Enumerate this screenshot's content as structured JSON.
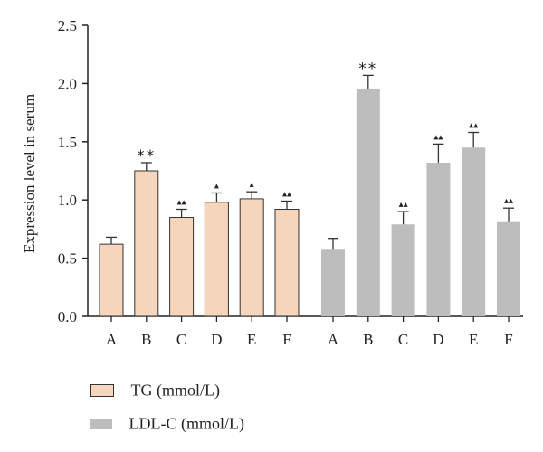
{
  "chart_data": {
    "type": "bar",
    "ylabel": "Expression level in serum",
    "ylim": [
      0,
      2.5
    ],
    "yticks": [
      "0.0",
      "0.5",
      "1.0",
      "1.5",
      "2.0",
      "2.5"
    ],
    "ytick_values": [
      0,
      0.5,
      1.0,
      1.5,
      2.0,
      2.5
    ],
    "legend_position": "bottom-left",
    "series": [
      {
        "name": "TG (mmol/L)",
        "color": "#f5d6bd",
        "categories": [
          "A",
          "B",
          "C",
          "D",
          "E",
          "F"
        ],
        "values": [
          0.62,
          1.25,
          0.85,
          0.98,
          1.01,
          0.92
        ],
        "errors": [
          0.06,
          0.07,
          0.07,
          0.08,
          0.06,
          0.07
        ],
        "annotations": [
          "",
          "**",
          "▴▴",
          "▴",
          "▴",
          "▴▴"
        ]
      },
      {
        "name": "LDL-C (mmol/L)",
        "color": "#bdbdbd",
        "categories": [
          "A",
          "B",
          "C",
          "D",
          "E",
          "F"
        ],
        "values": [
          0.58,
          1.95,
          0.79,
          1.32,
          1.45,
          0.81
        ],
        "errors": [
          0.09,
          0.12,
          0.11,
          0.16,
          0.13,
          0.12
        ],
        "annotations": [
          "",
          "**",
          "▴▴",
          "▴▴",
          "▴▴",
          "▴▴"
        ]
      }
    ]
  },
  "legend": {
    "items": [
      {
        "label": "TG (mmol/L)"
      },
      {
        "label": "LDL-C (mmol/L)"
      }
    ]
  }
}
